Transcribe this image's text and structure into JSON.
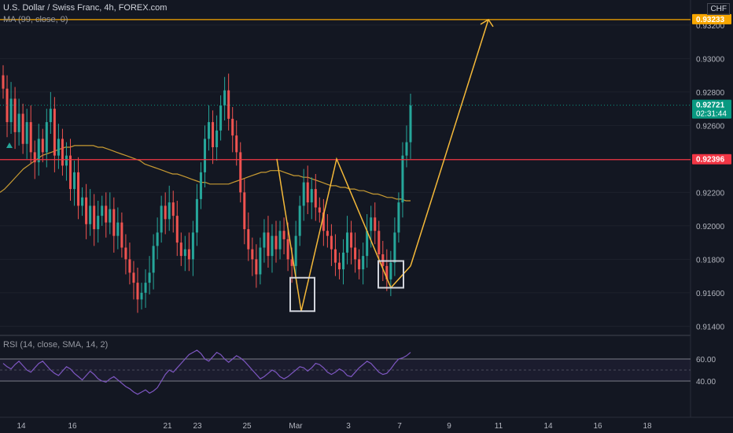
{
  "header": {
    "symbol_title": "U.S. Dollar / Swiss Franc, 4h, FOREX.com",
    "ma_legend": "MA (99, close, 0)",
    "currency": "CHF"
  },
  "rsi_panel": {
    "legend": "RSI (14, close, SMA, 14, 2)",
    "ticks": [
      "60.00",
      "40.00"
    ],
    "upper_band": 60,
    "lower_band": 40,
    "values": [
      56,
      53,
      51,
      55,
      58,
      54,
      50,
      48,
      52,
      56,
      58,
      54,
      50,
      47,
      45,
      49,
      53,
      51,
      47,
      44,
      41,
      45,
      49,
      46,
      42,
      40,
      39,
      42,
      44,
      41,
      38,
      35,
      33,
      30,
      28,
      30,
      32,
      29,
      31,
      34,
      40,
      46,
      50,
      48,
      52,
      56,
      60,
      64,
      66,
      68,
      65,
      60,
      58,
      62,
      66,
      64,
      60,
      57,
      60,
      63,
      61,
      58,
      54,
      50,
      46,
      42,
      44,
      47,
      50,
      48,
      44,
      42,
      44,
      47,
      50,
      53,
      52,
      49,
      52,
      56,
      55,
      52,
      48,
      46,
      48,
      51,
      49,
      45,
      44,
      48,
      52,
      55,
      58,
      56,
      52,
      48,
      46,
      47,
      51,
      56,
      60,
      61,
      63,
      66
    ]
  },
  "colors": {
    "background": "#131722",
    "bull": "#26a69a",
    "bear": "#ef5350",
    "ma_line": "#c79a32",
    "pattern": "#f5b939",
    "resistance": "#f23645",
    "target": "#f7a600",
    "current_price": "#089981",
    "rsi_line": "#7e57c2",
    "box": "#d1d4dc"
  },
  "chart_data": {
    "type": "candlestick",
    "symbol": "USD/CHF",
    "interval": "4h",
    "y_range": [
      0.9135,
      0.9335
    ],
    "y_ticks": [
      "0.93200",
      "0.93000",
      "0.92800",
      "0.92600",
      "0.92200",
      "0.92000",
      "0.91800",
      "0.91600",
      "0.91400"
    ],
    "x_tick_labels": [
      "14",
      "16",
      "21",
      "23",
      "25",
      "Mar",
      "3",
      "7",
      "9",
      "11",
      "14",
      "16",
      "18"
    ],
    "price_markers": {
      "target": "0.93233",
      "current": "0.92721",
      "countdown": "02:31:44",
      "resistance": "0.92396"
    },
    "levels": {
      "target": 0.93233,
      "current": 0.92721,
      "resistance": 0.92396
    },
    "candle_closes": [
      0.9282,
      0.9262,
      0.9276,
      0.9256,
      0.9267,
      0.9249,
      0.9262,
      0.9244,
      0.9238,
      0.9252,
      0.9244,
      0.9262,
      0.927,
      0.9242,
      0.9252,
      0.9236,
      0.9242,
      0.9222,
      0.9232,
      0.9212,
      0.9217,
      0.9201,
      0.9212,
      0.9198,
      0.9206,
      0.9212,
      0.9202,
      0.921,
      0.9194,
      0.9202,
      0.9187,
      0.918,
      0.9172,
      0.9166,
      0.9156,
      0.916,
      0.9166,
      0.9172,
      0.9188,
      0.9196,
      0.9212,
      0.9204,
      0.9214,
      0.9206,
      0.919,
      0.9182,
      0.9186,
      0.918,
      0.9196,
      0.9216,
      0.9232,
      0.9252,
      0.9262,
      0.9247,
      0.9257,
      0.9272,
      0.9281,
      0.9264,
      0.9254,
      0.9244,
      0.922,
      0.9198,
      0.9186,
      0.918,
      0.9171,
      0.9187,
      0.9196,
      0.9182,
      0.9194,
      0.9186,
      0.9197,
      0.9192,
      0.918,
      0.9176,
      0.9194,
      0.9212,
      0.9226,
      0.9214,
      0.9222,
      0.9211,
      0.9208,
      0.9197,
      0.9194,
      0.9186,
      0.9178,
      0.9174,
      0.9184,
      0.9196,
      0.9187,
      0.918,
      0.9174,
      0.9182,
      0.9197,
      0.9205,
      0.9197,
      0.9183,
      0.9176,
      0.9168,
      0.9178,
      0.9196,
      0.9214,
      0.9242,
      0.925,
      0.9272
    ],
    "ma_99": [
      0.922,
      0.9222,
      0.9225,
      0.9228,
      0.9231,
      0.9234,
      0.9236,
      0.9238,
      0.924,
      0.9242,
      0.9243,
      0.9244,
      0.9245,
      0.9246,
      0.9247,
      0.9247,
      0.9248,
      0.9248,
      0.9248,
      0.9248,
      0.9248,
      0.9247,
      0.9247,
      0.9246,
      0.9245,
      0.9244,
      0.9243,
      0.9242,
      0.9241,
      0.924,
      0.9239,
      0.9237,
      0.9236,
      0.9235,
      0.9234,
      0.9233,
      0.9232,
      0.9231,
      0.9231,
      0.923,
      0.9229,
      0.9228,
      0.9227,
      0.9226,
      0.9226,
      0.9225,
      0.9225,
      0.9225,
      0.9225,
      0.9225,
      0.9226,
      0.9227,
      0.9228,
      0.9229,
      0.923,
      0.9231,
      0.9232,
      0.9232,
      0.9233,
      0.9233,
      0.9233,
      0.9232,
      0.9231,
      0.923,
      0.923,
      0.9229,
      0.9229,
      0.9228,
      0.9227,
      0.9226,
      0.9225,
      0.9224,
      0.9224,
      0.9223,
      0.9223,
      0.9222,
      0.9222,
      0.9221,
      0.9221,
      0.922,
      0.9219,
      0.9219,
      0.9218,
      0.9217,
      0.9217,
      0.9216,
      0.9216,
      0.9215,
      0.9215
    ]
  }
}
